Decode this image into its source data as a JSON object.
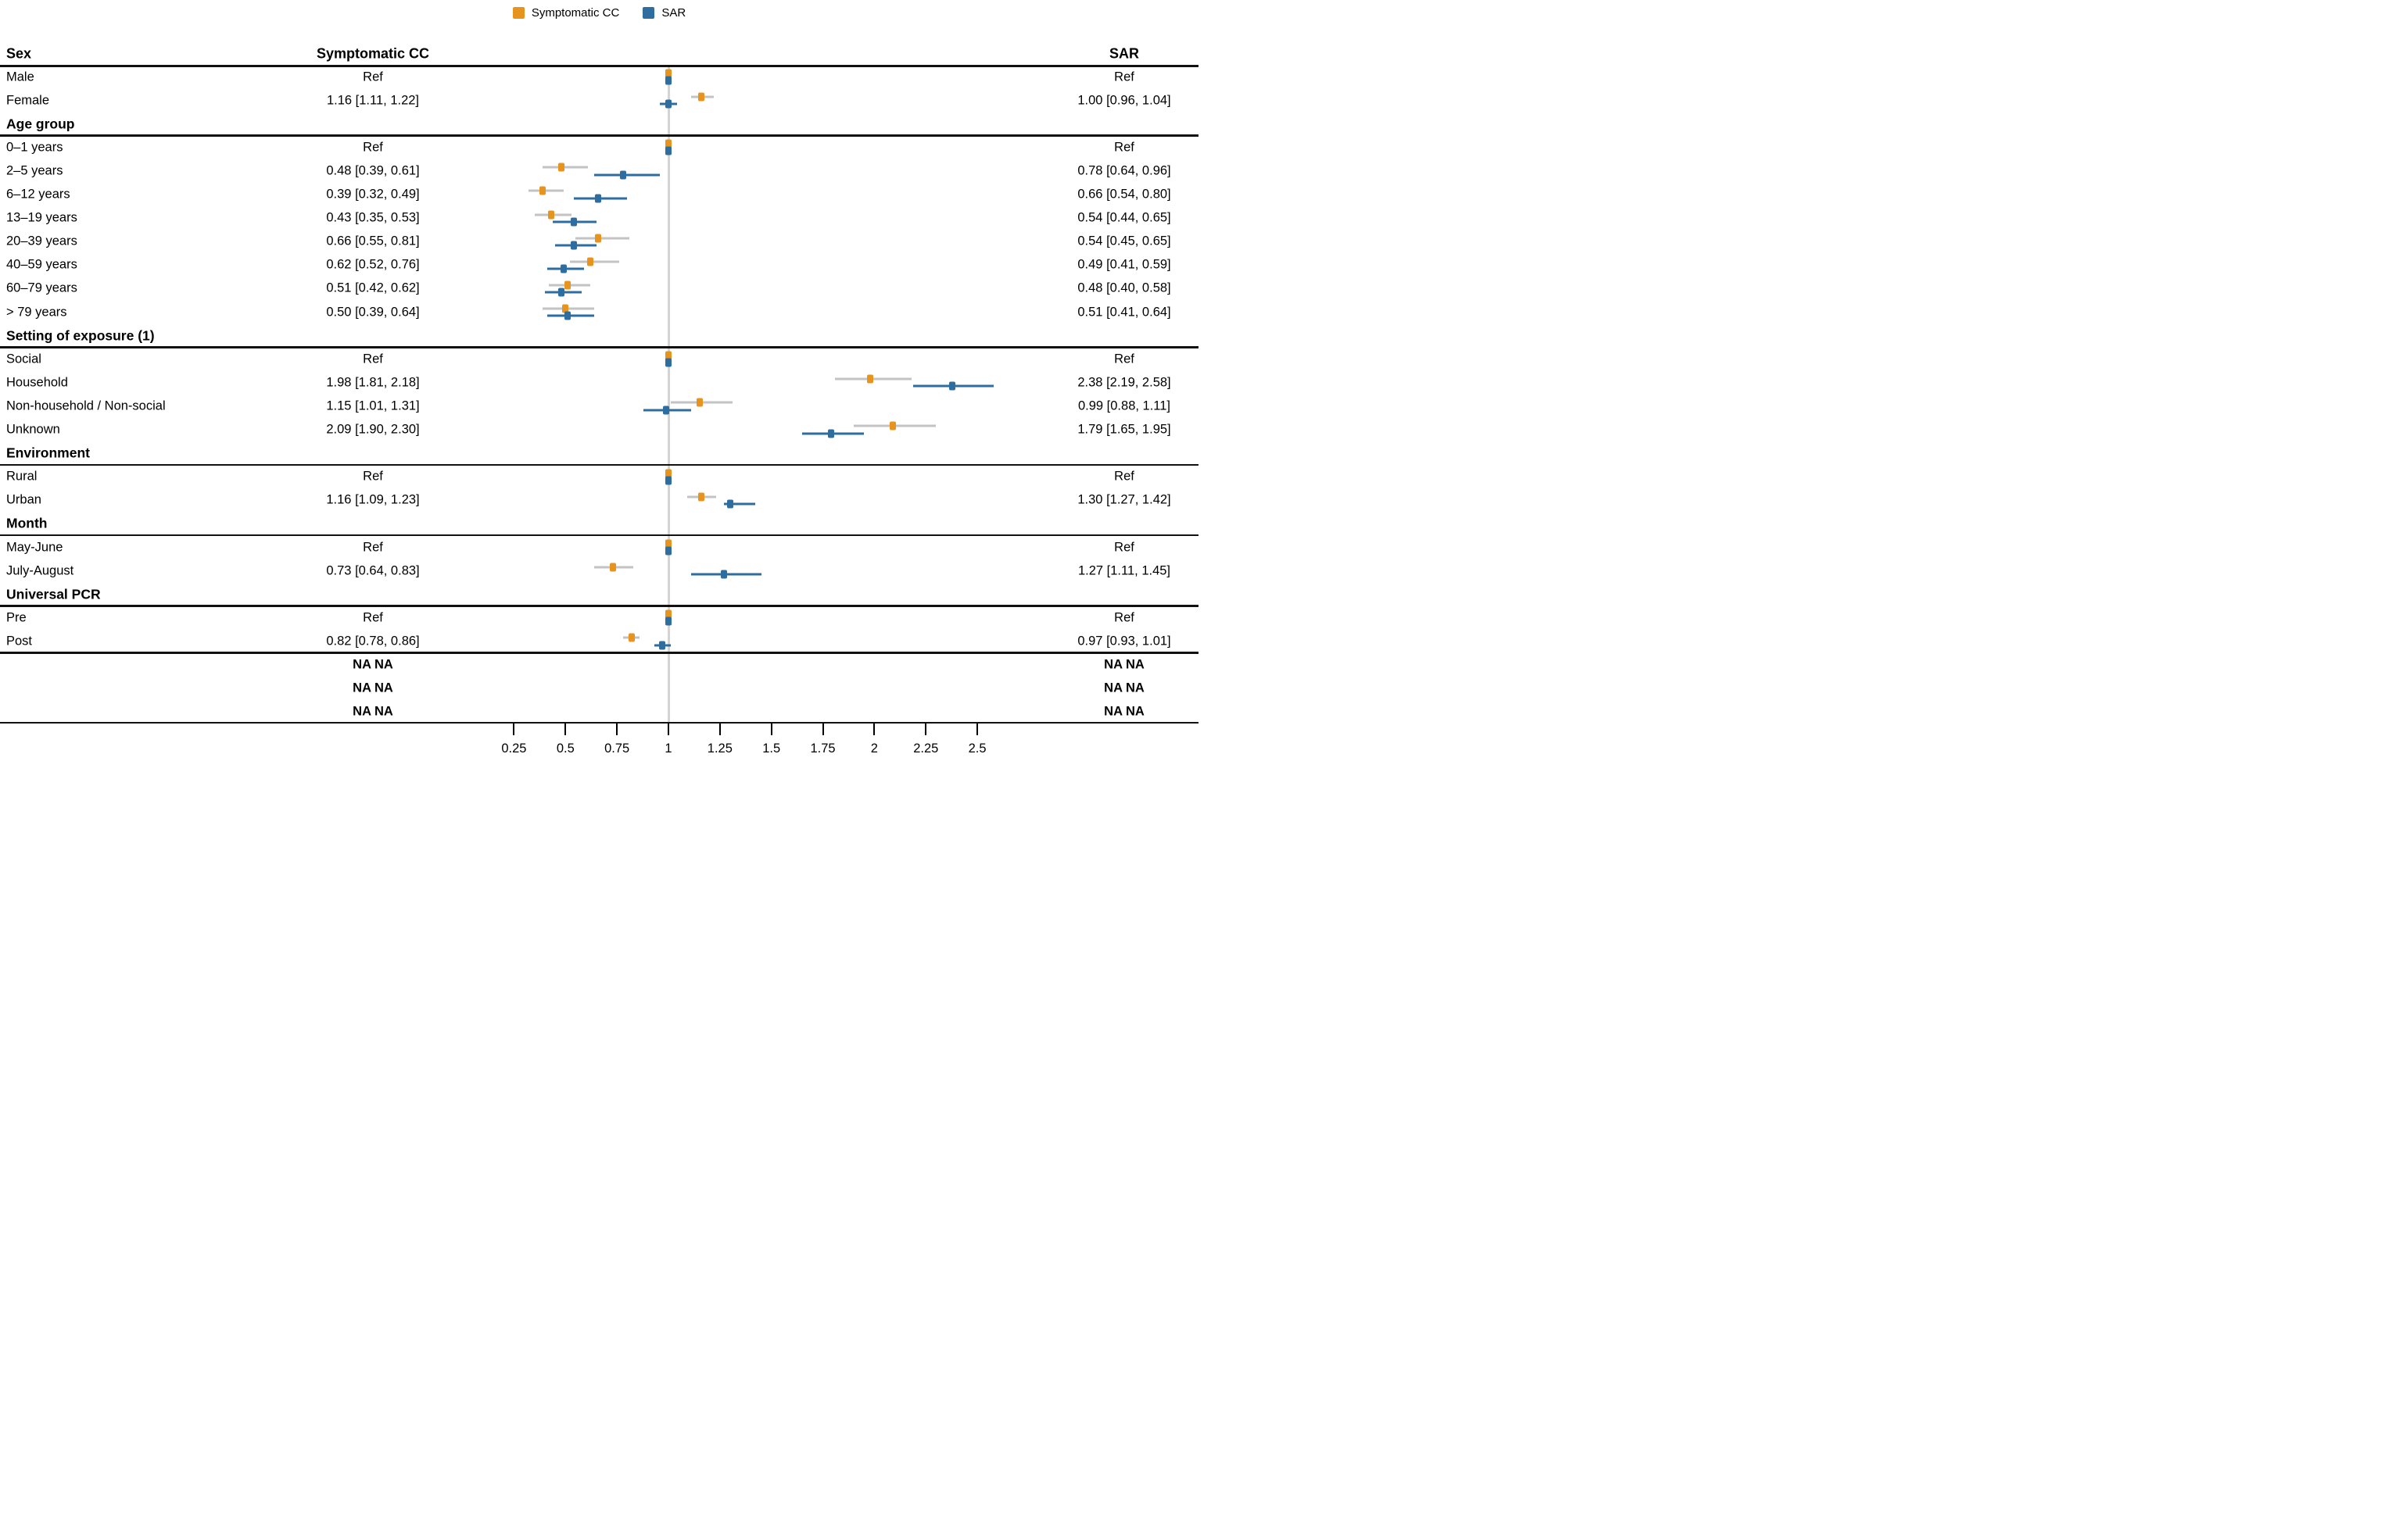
{
  "chart_data": {
    "type": "scatter",
    "subtype": "forest-plot",
    "legend": {
      "items": [
        {
          "label": "Symptomatic CC",
          "color": "#E7941E"
        },
        {
          "label": "SAR",
          "color": "#2D6D9F"
        }
      ]
    },
    "columns": {
      "left": "Sex",
      "center": "Symptomatic CC",
      "right": "SAR"
    },
    "colors": {
      "cc": "#E7941E",
      "sar": "#2D6D9F",
      "cc_ci": "#C3C3C3",
      "reference_line": "#D4D4D4",
      "rule": "#111111"
    },
    "xaxis": {
      "ticks": [
        0.25,
        0.5,
        0.75,
        1,
        1.25,
        1.5,
        1.75,
        2,
        2.25,
        2.5
      ],
      "tick_labels": [
        "0.25",
        "0.5",
        "0.75",
        "1",
        "1.25",
        "1.5",
        "1.75",
        "2",
        "2.25",
        "2.5"
      ],
      "reference_value": 1,
      "scale": "linear"
    },
    "rows": [
      {
        "type": "item",
        "label": "Male",
        "cc": {
          "text": "Ref",
          "est": 1,
          "lo": null,
          "hi": null
        },
        "sar": {
          "text": "Ref",
          "est": 1,
          "lo": null,
          "hi": null
        }
      },
      {
        "type": "item",
        "label": "Female",
        "cc": {
          "text": "1.16 [1.11, 1.22]",
          "est": 1.16,
          "lo": 1.11,
          "hi": 1.22
        },
        "sar": {
          "text": "1.00 [0.96, 1.04]",
          "est": 1.0,
          "lo": 0.96,
          "hi": 1.04
        }
      },
      {
        "type": "group",
        "label": "Age group",
        "rule_below": true
      },
      {
        "type": "item",
        "label": "0–1 years",
        "cc": {
          "text": "Ref",
          "est": 1,
          "lo": null,
          "hi": null
        },
        "sar": {
          "text": "Ref",
          "est": 1,
          "lo": null,
          "hi": null
        }
      },
      {
        "type": "item",
        "label": "2–5 years",
        "cc": {
          "text": "0.48 [0.39, 0.61]",
          "est": 0.48,
          "lo": 0.39,
          "hi": 0.61
        },
        "sar": {
          "text": "0.78 [0.64, 0.96]",
          "est": 0.78,
          "lo": 0.64,
          "hi": 0.96
        }
      },
      {
        "type": "item",
        "label": "6–12 years",
        "cc": {
          "text": "0.39 [0.32, 0.49]",
          "est": 0.39,
          "lo": 0.32,
          "hi": 0.49
        },
        "sar": {
          "text": "0.66 [0.54, 0.80]",
          "est": 0.66,
          "lo": 0.54,
          "hi": 0.8
        }
      },
      {
        "type": "item",
        "label": "13–19 years",
        "cc": {
          "text": "0.43 [0.35, 0.53]",
          "est": 0.43,
          "lo": 0.35,
          "hi": 0.53
        },
        "sar": {
          "text": "0.54 [0.44, 0.65]",
          "est": 0.54,
          "lo": 0.44,
          "hi": 0.65
        }
      },
      {
        "type": "item",
        "label": "20–39 years",
        "cc": {
          "text": "0.66 [0.55, 0.81]",
          "est": 0.66,
          "lo": 0.55,
          "hi": 0.81
        },
        "sar": {
          "text": "0.54 [0.45, 0.65]",
          "est": 0.54,
          "lo": 0.45,
          "hi": 0.65
        }
      },
      {
        "type": "item",
        "label": "40–59 years",
        "cc": {
          "text": "0.62 [0.52, 0.76]",
          "est": 0.62,
          "lo": 0.52,
          "hi": 0.76
        },
        "sar": {
          "text": "0.49 [0.41, 0.59]",
          "est": 0.49,
          "lo": 0.41,
          "hi": 0.59
        }
      },
      {
        "type": "item",
        "label": "60–79 years",
        "cc": {
          "text": "0.51 [0.42, 0.62]",
          "est": 0.51,
          "lo": 0.42,
          "hi": 0.62
        },
        "sar": {
          "text": "0.48 [0.40, 0.58]",
          "est": 0.48,
          "lo": 0.4,
          "hi": 0.58
        }
      },
      {
        "type": "item",
        "label": "> 79 years",
        "cc": {
          "text": "0.50 [0.39, 0.64]",
          "est": 0.5,
          "lo": 0.39,
          "hi": 0.64
        },
        "sar": {
          "text": "0.51 [0.41, 0.64]",
          "est": 0.51,
          "lo": 0.41,
          "hi": 0.64
        }
      },
      {
        "type": "group",
        "label": "Setting of exposure (1)",
        "rule_below": true
      },
      {
        "type": "item",
        "label": "Social",
        "cc": {
          "text": "Ref",
          "est": 1,
          "lo": null,
          "hi": null
        },
        "sar": {
          "text": "Ref",
          "est": 1,
          "lo": null,
          "hi": null
        }
      },
      {
        "type": "item",
        "label": "Household",
        "cc": {
          "text": "1.98 [1.81, 2.18]",
          "est": 1.98,
          "lo": 1.81,
          "hi": 2.18
        },
        "sar": {
          "text": "2.38 [2.19, 2.58]",
          "est": 2.38,
          "lo": 2.19,
          "hi": 2.58
        }
      },
      {
        "type": "item",
        "label": "Non-household / Non-social",
        "cc": {
          "text": "1.15 [1.01, 1.31]",
          "est": 1.15,
          "lo": 1.01,
          "hi": 1.31
        },
        "sar": {
          "text": "0.99 [0.88, 1.11]",
          "est": 0.99,
          "lo": 0.88,
          "hi": 1.11
        }
      },
      {
        "type": "item",
        "label": "Unknown",
        "cc": {
          "text": "2.09 [1.90, 2.30]",
          "est": 2.09,
          "lo": 1.9,
          "hi": 2.3
        },
        "sar": {
          "text": "1.79 [1.65, 1.95]",
          "est": 1.79,
          "lo": 1.65,
          "hi": 1.95
        }
      },
      {
        "type": "group",
        "label": "Environment",
        "rule_below": true
      },
      {
        "type": "item",
        "label": "Rural",
        "cc": {
          "text": "Ref",
          "est": 1,
          "lo": null,
          "hi": null
        },
        "sar": {
          "text": "Ref",
          "est": 1,
          "lo": null,
          "hi": null
        }
      },
      {
        "type": "item",
        "label": "Urban",
        "cc": {
          "text": "1.16 [1.09, 1.23]",
          "est": 1.16,
          "lo": 1.09,
          "hi": 1.23
        },
        "sar": {
          "text": "1.30 [1.27, 1.42]",
          "est": 1.3,
          "lo": 1.27,
          "hi": 1.42
        }
      },
      {
        "type": "group",
        "label": "Month",
        "rule_below": true
      },
      {
        "type": "item",
        "label": "May-June",
        "cc": {
          "text": "Ref",
          "est": 1,
          "lo": null,
          "hi": null
        },
        "sar": {
          "text": "Ref",
          "est": 1,
          "lo": null,
          "hi": null
        }
      },
      {
        "type": "item",
        "label": "July-August",
        "cc": {
          "text": "0.73 [0.64, 0.83]",
          "est": 0.73,
          "lo": 0.64,
          "hi": 0.83
        },
        "sar": {
          "text": "1.27 [1.11, 1.45]",
          "est": 1.27,
          "lo": 1.11,
          "hi": 1.45
        }
      },
      {
        "type": "group",
        "label": "Universal PCR",
        "rule_below": true
      },
      {
        "type": "item",
        "label": "Pre",
        "cc": {
          "text": "Ref",
          "est": 1,
          "lo": null,
          "hi": null
        },
        "sar": {
          "text": "Ref",
          "est": 1,
          "lo": null,
          "hi": null
        }
      },
      {
        "type": "item",
        "label": "Post",
        "cc": {
          "text": "0.82 [0.78, 0.86]",
          "est": 0.82,
          "lo": 0.78,
          "hi": 0.86
        },
        "sar": {
          "text": "0.97 [0.93, 1.01]",
          "est": 0.97,
          "lo": 0.93,
          "hi": 1.01
        },
        "rule_below": true
      },
      {
        "type": "na",
        "label": "",
        "cc": {
          "text": "NA NA",
          "est": null,
          "lo": null,
          "hi": null
        },
        "sar": {
          "text": "NA NA",
          "est": null,
          "lo": null,
          "hi": null
        }
      },
      {
        "type": "na",
        "label": "",
        "cc": {
          "text": "NA NA",
          "est": null,
          "lo": null,
          "hi": null
        },
        "sar": {
          "text": "NA NA",
          "est": null,
          "lo": null,
          "hi": null
        }
      },
      {
        "type": "na",
        "label": "",
        "cc": {
          "text": "NA NA",
          "est": null,
          "lo": null,
          "hi": null
        },
        "sar": {
          "text": "NA NA",
          "est": null,
          "lo": null,
          "hi": null
        }
      }
    ]
  }
}
